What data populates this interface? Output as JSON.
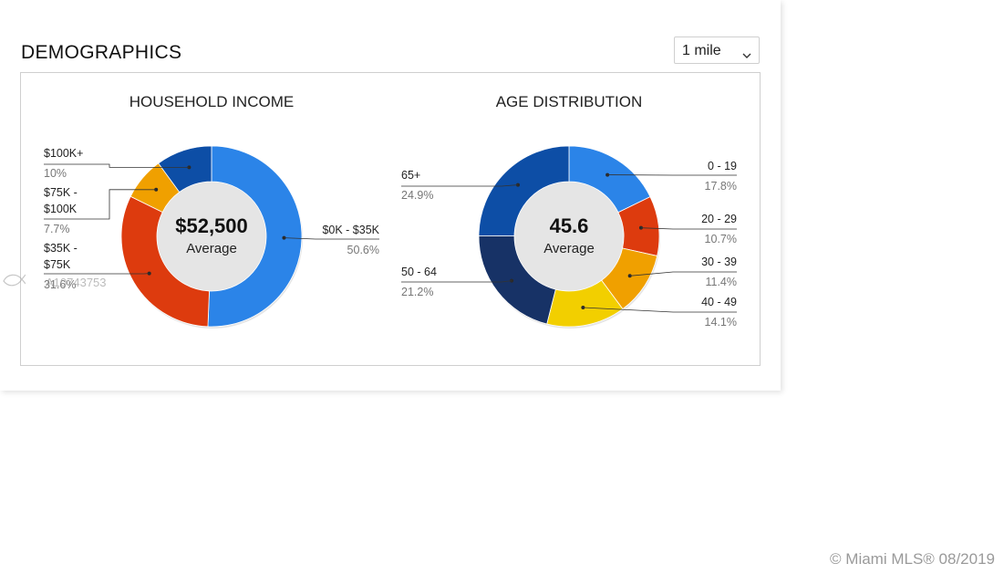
{
  "header": {
    "title": "DEMOGRAPHICS",
    "radius_select": {
      "value": "1 mile"
    }
  },
  "watermark": {
    "listing_id": "A10743753",
    "copyright": "© Miami MLS® 08/2019"
  },
  "chart_data": [
    {
      "type": "donut",
      "title": "HOUSEHOLD INCOME",
      "center_value": "$52,500",
      "center_label": "Average",
      "slices": [
        {
          "label": "$0K - $35K",
          "percent": "50.6%",
          "value": 50.6,
          "color": "#2b84e8"
        },
        {
          "label": "$35K - $75K",
          "label_lines": [
            "$35K -",
            "$75K"
          ],
          "percent": "31.6%",
          "value": 31.6,
          "color": "#dd3b0e"
        },
        {
          "label": "$75K - $100K",
          "label_lines": [
            "$75K -",
            "$100K"
          ],
          "percent": "7.7%",
          "value": 7.7,
          "color": "#f0a000"
        },
        {
          "label": "$100K+",
          "percent": "10%",
          "value": 10.0,
          "color": "#0d4ea6"
        }
      ]
    },
    {
      "type": "donut",
      "title": "AGE DISTRIBUTION",
      "center_value": "45.6",
      "center_label": "Average",
      "slices": [
        {
          "label": "0 - 19",
          "percent": "17.8%",
          "value": 17.8,
          "color": "#2b84e8"
        },
        {
          "label": "20 - 29",
          "percent": "10.7%",
          "value": 10.7,
          "color": "#dd3b0e"
        },
        {
          "label": "30 - 39",
          "percent": "11.4%",
          "value": 11.4,
          "color": "#f0a000"
        },
        {
          "label": "40 - 49",
          "percent": "14.1%",
          "value": 14.1,
          "color": "#f2cf00"
        },
        {
          "label": "50 - 64",
          "percent": "21.2%",
          "value": 21.2,
          "color": "#173266"
        },
        {
          "label": "65+",
          "percent": "24.9%",
          "value": 24.9,
          "color": "#0d4ea6"
        }
      ]
    }
  ]
}
